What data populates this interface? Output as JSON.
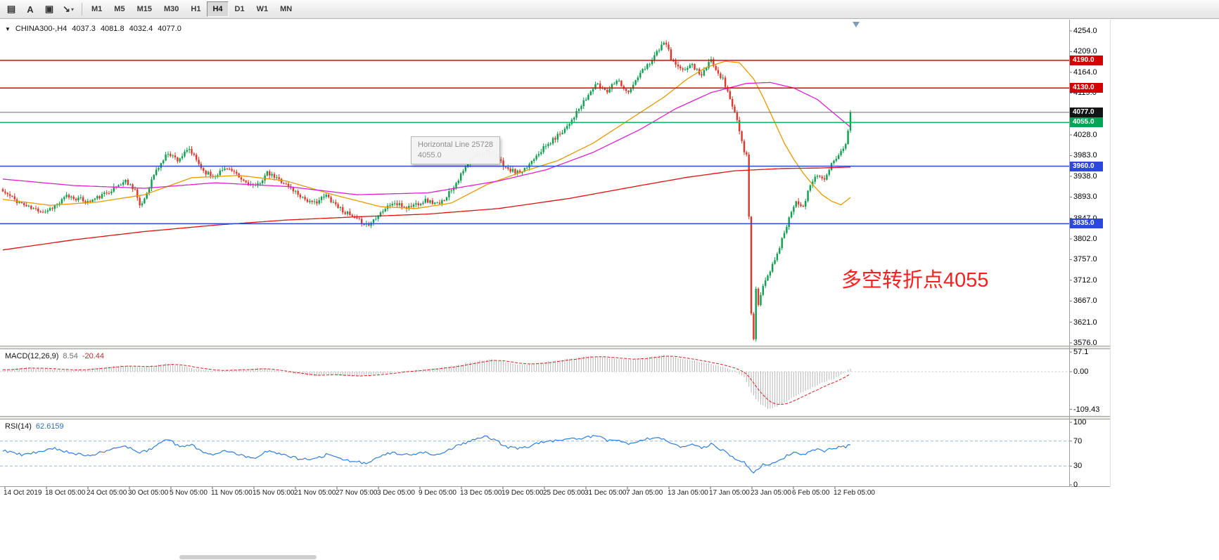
{
  "colors": {
    "up_candle": "#0ba04c",
    "down_candle": "#e2352a",
    "macd_hist": "#b6b6b6",
    "macd_signal": "#d42020",
    "rsi_line": "#2f7ed8",
    "rsi_levels": "#8fb8e8",
    "annotation": "#ff1e1e"
  },
  "toolbar": {
    "caret_glyph": "▾",
    "tools": [
      {
        "name": "chart-type-icon",
        "glyph": "▤",
        "caret": false
      },
      {
        "name": "text-annotation-icon",
        "glyph": "A",
        "caret": false
      },
      {
        "name": "label-tool-icon",
        "glyph": "▣",
        "caret": false
      },
      {
        "name": "line-tool-icon",
        "glyph": "↘",
        "caret": true
      }
    ],
    "timeframes": [
      "M1",
      "M5",
      "M15",
      "M30",
      "H1",
      "H4",
      "D1",
      "W1",
      "MN"
    ],
    "active_timeframe": "H4"
  },
  "header": {
    "collapse_icon": "▼",
    "symbol": "CHINA300-,H4",
    "open": "4037.3",
    "high": "4081.8",
    "low": "4032.4",
    "close": "4077.0"
  },
  "main_chart": {
    "y_range": [
      3576,
      4254
    ],
    "y_ticks": [
      "4254.0",
      "4209.0",
      "4164.0",
      "4119.0",
      "4028.0",
      "3983.0",
      "3938.0",
      "3893.0",
      "3847.0",
      "3802.0",
      "3757.0",
      "3712.0",
      "3667.0",
      "3621.0",
      "3576.0"
    ],
    "levels": [
      {
        "price": 4190,
        "label": "4190.0",
        "line": "#e60000",
        "badge": "#d40000",
        "current": false
      },
      {
        "price": 4130,
        "label": "4130.0",
        "line": "#e60000",
        "badge": "#d40000",
        "current": false
      },
      {
        "price": 4077,
        "label": "4077.0",
        "line": "#6a6a6a",
        "badge": "#141414",
        "current": true
      },
      {
        "price": 4055,
        "label": "4055.0",
        "line": "#00c263",
        "badge": "#00a655",
        "current": false
      },
      {
        "price": 3960,
        "label": "3960.0",
        "line": "#2c46e0",
        "badge": "#2c46e0",
        "current": false
      },
      {
        "price": 3835,
        "label": "3835.0",
        "line": "#2c46e0",
        "badge": "#2c46e0",
        "current": false
      }
    ],
    "tooltip": {
      "title": "Horizontal Line 25728",
      "value": "4055.0"
    },
    "annotation": {
      "text": "多空转折点4055"
    }
  },
  "macd_panel": {
    "label": "MACD(12,26,9)",
    "main_value": "8.54",
    "signal_value": "-20.44",
    "y_ticks": [
      "57.1",
      "0.00",
      "-109.43"
    ]
  },
  "rsi_panel": {
    "label": "RSI(14)",
    "value": "62.6159",
    "y_ticks": [
      "100",
      "70",
      "30",
      "0"
    ],
    "levels": [
      70,
      30
    ]
  },
  "x_axis": {
    "labels": [
      "14 Oct 2019",
      "18 Oct 05:00",
      "24 Oct 05:00",
      "30 Oct 05:00",
      "5 Nov 05:00",
      "11 Nov 05:00",
      "15 Nov 05:00",
      "21 Nov 05:00",
      "27 Nov 05:00",
      "3 Dec 05:00",
      "9 Dec 05:00",
      "13 Dec 05:00",
      "19 Dec 05:00",
      "25 Dec 05:00",
      "31 Dec 05:00",
      "7 Jan 05:00",
      "13 Jan 05:00",
      "17 Jan 05:00",
      "23 Jan 05:00",
      "6 Feb 05:00",
      "12 Feb 05:00"
    ]
  },
  "chart_data": {
    "type": "candlestick",
    "symbol": "CHINA300-",
    "timeframe": "H4",
    "n_candles": 360,
    "last_candle": {
      "o": 4037.3,
      "h": 4081.8,
      "l": 4032.4,
      "c": 4077.0
    },
    "price_anchors": [
      [
        0,
        3905
      ],
      [
        6,
        3884
      ],
      [
        12,
        3868
      ],
      [
        18,
        3862
      ],
      [
        24,
        3880
      ],
      [
        27,
        3895
      ],
      [
        33,
        3888
      ],
      [
        36,
        3882
      ],
      [
        42,
        3896
      ],
      [
        45,
        3906
      ],
      [
        52,
        3928
      ],
      [
        56,
        3910
      ],
      [
        58,
        3870
      ],
      [
        60,
        3890
      ],
      [
        64,
        3942
      ],
      [
        70,
        3990
      ],
      [
        74,
        3974
      ],
      [
        79,
        3996
      ],
      [
        85,
        3950
      ],
      [
        89,
        3938
      ],
      [
        95,
        3958
      ],
      [
        101,
        3930
      ],
      [
        107,
        3915
      ],
      [
        112,
        3944
      ],
      [
        118,
        3928
      ],
      [
        125,
        3900
      ],
      [
        131,
        3878
      ],
      [
        137,
        3896
      ],
      [
        143,
        3868
      ],
      [
        149,
        3845
      ],
      [
        155,
        3832
      ],
      [
        159,
        3856
      ],
      [
        165,
        3880
      ],
      [
        171,
        3870
      ],
      [
        179,
        3886
      ],
      [
        185,
        3876
      ],
      [
        190,
        3910
      ],
      [
        195,
        3948
      ],
      [
        199,
        3980
      ],
      [
        205,
        3996
      ],
      [
        210,
        3974
      ],
      [
        214,
        3952
      ],
      [
        220,
        3944
      ],
      [
        226,
        3986
      ],
      [
        232,
        4012
      ],
      [
        238,
        4042
      ],
      [
        243,
        4076
      ],
      [
        247,
        4106
      ],
      [
        251,
        4138
      ],
      [
        256,
        4124
      ],
      [
        260,
        4150
      ],
      [
        265,
        4118
      ],
      [
        269,
        4154
      ],
      [
        274,
        4186
      ],
      [
        278,
        4216
      ],
      [
        281,
        4228
      ],
      [
        283,
        4192
      ],
      [
        287,
        4168
      ],
      [
        292,
        4180
      ],
      [
        296,
        4158
      ],
      [
        300,
        4190
      ],
      [
        305,
        4148
      ],
      [
        308,
        4108
      ],
      [
        311,
        4058
      ],
      [
        314,
        3990
      ],
      [
        315,
        3984
      ],
      [
        316,
        3850
      ],
      [
        317,
        3640
      ],
      [
        318,
        3585
      ],
      [
        319,
        3692
      ],
      [
        320,
        3660
      ],
      [
        322,
        3700
      ],
      [
        324,
        3722
      ],
      [
        327,
        3758
      ],
      [
        330,
        3800
      ],
      [
        333,
        3848
      ],
      [
        336,
        3888
      ],
      [
        339,
        3868
      ],
      [
        342,
        3920
      ],
      [
        345,
        3944
      ],
      [
        348,
        3928
      ],
      [
        351,
        3962
      ],
      [
        354,
        3988
      ],
      [
        356,
        3998
      ],
      [
        357,
        4008
      ],
      [
        358,
        4037
      ],
      [
        359,
        4077
      ]
    ],
    "mas": [
      {
        "name": "ma-fast-orange",
        "color": "#e59a00",
        "anchors": [
          [
            0,
            3888
          ],
          [
            20,
            3875
          ],
          [
            40,
            3882
          ],
          [
            60,
            3898
          ],
          [
            80,
            3935
          ],
          [
            100,
            3940
          ],
          [
            120,
            3928
          ],
          [
            140,
            3898
          ],
          [
            160,
            3872
          ],
          [
            175,
            3868
          ],
          [
            190,
            3880
          ],
          [
            205,
            3920
          ],
          [
            220,
            3948
          ],
          [
            235,
            3972
          ],
          [
            250,
            4010
          ],
          [
            265,
            4060
          ],
          [
            280,
            4110
          ],
          [
            290,
            4150
          ],
          [
            298,
            4175
          ],
          [
            306,
            4188
          ],
          [
            312,
            4185
          ],
          [
            318,
            4150
          ],
          [
            322,
            4110
          ],
          [
            327,
            4055
          ],
          [
            331,
            4010
          ],
          [
            335,
            3975
          ],
          [
            339,
            3945
          ],
          [
            343,
            3920
          ],
          [
            347,
            3898
          ],
          [
            351,
            3884
          ],
          [
            355,
            3876
          ],
          [
            359,
            3892
          ]
        ]
      },
      {
        "name": "ma-mid-magenta",
        "color": "#dd22cc",
        "anchors": [
          [
            0,
            3932
          ],
          [
            30,
            3918
          ],
          [
            60,
            3912
          ],
          [
            90,
            3924
          ],
          [
            120,
            3916
          ],
          [
            150,
            3898
          ],
          [
            180,
            3902
          ],
          [
            210,
            3928
          ],
          [
            230,
            3952
          ],
          [
            250,
            3990
          ],
          [
            270,
            4040
          ],
          [
            285,
            4085
          ],
          [
            300,
            4120
          ],
          [
            315,
            4140
          ],
          [
            325,
            4142
          ],
          [
            335,
            4130
          ],
          [
            345,
            4105
          ],
          [
            352,
            4075
          ],
          [
            359,
            4045
          ]
        ]
      },
      {
        "name": "ma-slow-red",
        "color": "#dd1111",
        "anchors": [
          [
            0,
            3778
          ],
          [
            30,
            3800
          ],
          [
            60,
            3818
          ],
          [
            90,
            3832
          ],
          [
            120,
            3843
          ],
          [
            150,
            3850
          ],
          [
            180,
            3856
          ],
          [
            210,
            3868
          ],
          [
            240,
            3890
          ],
          [
            270,
            3918
          ],
          [
            290,
            3936
          ],
          [
            310,
            3950
          ],
          [
            330,
            3955
          ],
          [
            345,
            3956
          ],
          [
            359,
            3958
          ]
        ]
      }
    ],
    "macd_anchors": [
      [
        0,
        5
      ],
      [
        10,
        12
      ],
      [
        20,
        8
      ],
      [
        30,
        4
      ],
      [
        40,
        10
      ],
      [
        50,
        18
      ],
      [
        60,
        14
      ],
      [
        70,
        24
      ],
      [
        80,
        10
      ],
      [
        90,
        2
      ],
      [
        100,
        6
      ],
      [
        110,
        10
      ],
      [
        120,
        -2
      ],
      [
        130,
        -12
      ],
      [
        140,
        -8
      ],
      [
        150,
        -14
      ],
      [
        160,
        -6
      ],
      [
        170,
        2
      ],
      [
        180,
        8
      ],
      [
        190,
        16
      ],
      [
        200,
        30
      ],
      [
        207,
        36
      ],
      [
        214,
        26
      ],
      [
        220,
        20
      ],
      [
        226,
        24
      ],
      [
        232,
        30
      ],
      [
        240,
        38
      ],
      [
        250,
        46
      ],
      [
        258,
        40
      ],
      [
        265,
        34
      ],
      [
        272,
        40
      ],
      [
        280,
        48
      ],
      [
        288,
        38
      ],
      [
        296,
        28
      ],
      [
        304,
        16
      ],
      [
        310,
        2
      ],
      [
        314,
        -14
      ],
      [
        317,
        -60
      ],
      [
        320,
        -88
      ],
      [
        324,
        -108
      ],
      [
        328,
        -101
      ],
      [
        332,
        -86
      ],
      [
        336,
        -70
      ],
      [
        340,
        -55
      ],
      [
        344,
        -42
      ],
      [
        348,
        -30
      ],
      [
        352,
        -20
      ],
      [
        355,
        -9
      ],
      [
        357,
        1
      ],
      [
        359,
        8.5
      ]
    ],
    "rsi_anchors": [
      [
        0,
        55
      ],
      [
        8,
        48
      ],
      [
        15,
        52
      ],
      [
        22,
        58
      ],
      [
        30,
        50
      ],
      [
        38,
        47
      ],
      [
        45,
        56
      ],
      [
        52,
        62
      ],
      [
        58,
        50
      ],
      [
        64,
        60
      ],
      [
        70,
        73
      ],
      [
        75,
        60
      ],
      [
        80,
        64
      ],
      [
        85,
        52
      ],
      [
        90,
        48
      ],
      [
        95,
        55
      ],
      [
        101,
        47
      ],
      [
        107,
        44
      ],
      [
        112,
        54
      ],
      [
        118,
        48
      ],
      [
        125,
        42
      ],
      [
        131,
        40
      ],
      [
        137,
        48
      ],
      [
        143,
        41
      ],
      [
        149,
        37
      ],
      [
        155,
        35
      ],
      [
        159,
        45
      ],
      [
        165,
        52
      ],
      [
        171,
        48
      ],
      [
        179,
        51
      ],
      [
        185,
        48
      ],
      [
        190,
        58
      ],
      [
        195,
        66
      ],
      [
        199,
        72
      ],
      [
        205,
        77
      ],
      [
        210,
        68
      ],
      [
        214,
        60
      ],
      [
        220,
        58
      ],
      [
        226,
        66
      ],
      [
        232,
        70
      ],
      [
        238,
        72
      ],
      [
        243,
        74
      ],
      [
        247,
        76
      ],
      [
        251,
        79
      ],
      [
        256,
        70
      ],
      [
        260,
        73
      ],
      [
        265,
        64
      ],
      [
        269,
        70
      ],
      [
        274,
        74
      ],
      [
        278,
        77
      ],
      [
        283,
        66
      ],
      [
        287,
        61
      ],
      [
        292,
        64
      ],
      [
        296,
        58
      ],
      [
        300,
        65
      ],
      [
        305,
        55
      ],
      [
        308,
        48
      ],
      [
        311,
        40
      ],
      [
        314,
        35
      ],
      [
        316,
        28
      ],
      [
        318,
        20
      ],
      [
        320,
        26
      ],
      [
        322,
        32
      ],
      [
        324,
        30
      ],
      [
        327,
        36
      ],
      [
        330,
        42
      ],
      [
        333,
        48
      ],
      [
        336,
        52
      ],
      [
        339,
        47
      ],
      [
        342,
        54
      ],
      [
        345,
        58
      ],
      [
        348,
        54
      ],
      [
        351,
        58
      ],
      [
        354,
        60
      ],
      [
        357,
        61
      ],
      [
        359,
        63
      ]
    ]
  }
}
